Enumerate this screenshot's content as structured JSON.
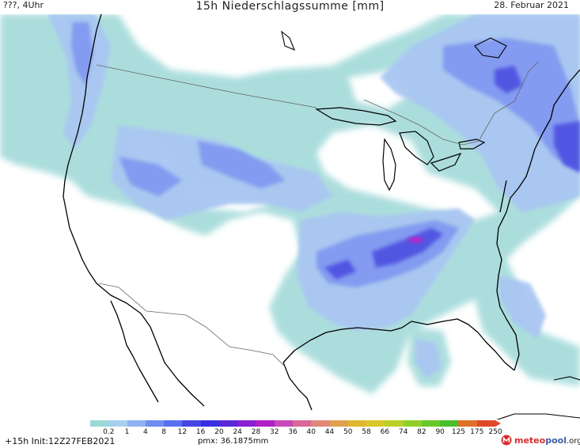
{
  "header": {
    "left": "???, 4Uhr",
    "title": "15h Niederschlagssumme [mm]",
    "date": "28. Februar 2021"
  },
  "legend": {
    "ticks": [
      "0.2",
      "1",
      "4",
      "8",
      "12",
      "16",
      "20",
      "24",
      "28",
      "32",
      "36",
      "40",
      "44",
      "50",
      "58",
      "66",
      "74",
      "82",
      "90",
      "125",
      "175",
      "250"
    ],
    "colors": [
      "#9bd8d8",
      "#a9cff0",
      "#8fb3f2",
      "#6e8ef0",
      "#5a6ff0",
      "#4646e6",
      "#3a2ee0",
      "#5a28d8",
      "#8a20d0",
      "#b020c8",
      "#c848b8",
      "#d86898",
      "#e08878",
      "#e0a050",
      "#e0b830",
      "#d8c828",
      "#b8d028",
      "#90d028",
      "#68c828",
      "#48c028",
      "#e07028",
      "#e04828"
    ]
  },
  "footer": {
    "run": "+15h Init:12Z27FEB2021",
    "pmx": "pmx: 36.1875mm"
  },
  "logo": {
    "text_red": "meteo",
    "text_blue": "pool",
    "suffix": ".org"
  },
  "colors": {
    "light_teal": "#a8dcdc",
    "light_blue": "#a9c6f2",
    "mid_blue": "#7f97f0",
    "deep_blue": "#4a4ce0",
    "magenta": "#b22ccc"
  }
}
